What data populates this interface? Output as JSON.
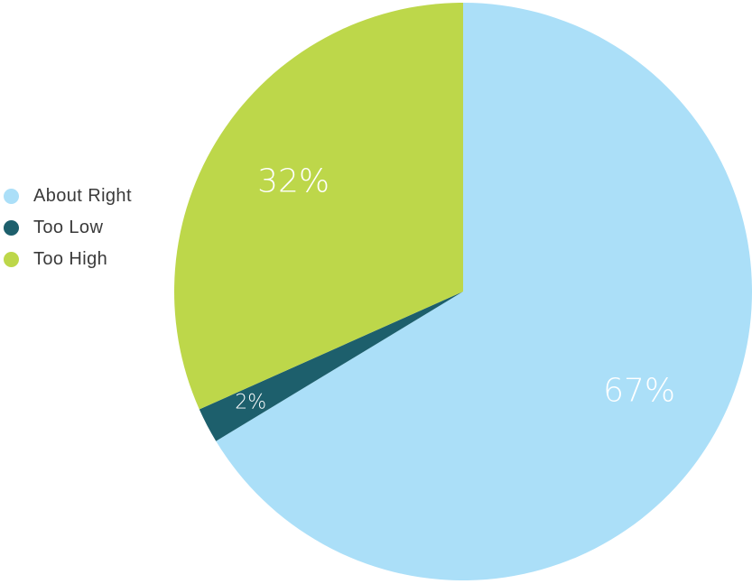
{
  "chart_data": {
    "type": "pie",
    "title": "",
    "legend_position": "left",
    "slices": [
      {
        "label": "About Right",
        "value": 67,
        "value_label": "67%",
        "color": "#abdff8"
      },
      {
        "label": "Too Low",
        "value": 2,
        "value_label": "2%",
        "color": "#1d5f6c"
      },
      {
        "label": "Too High",
        "value": 32,
        "value_label": "32%",
        "color": "#bdd74a"
      }
    ]
  }
}
